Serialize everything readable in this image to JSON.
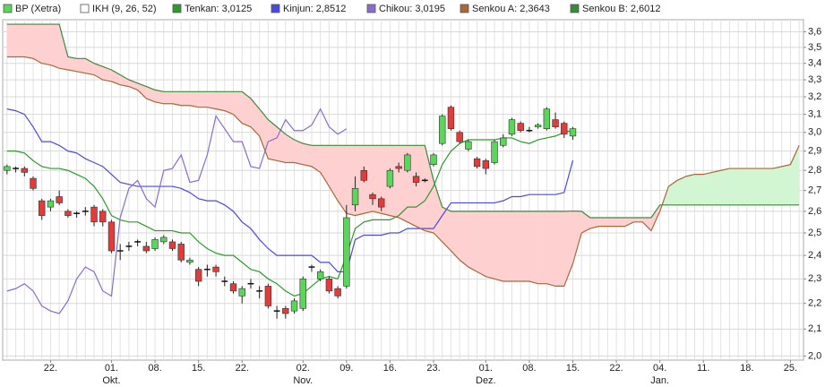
{
  "chart_data": {
    "type": "candlestick",
    "name": "BP (Xetra)",
    "indicator": "IKH (9, 26, 52)",
    "up_color": "#5ad65a",
    "down_color": "#e03c3c",
    "cloud_colors": [
      "#ffd0d0",
      "#d2f5d2"
    ],
    "log_scale": true,
    "grid": true,
    "categories": [
      null,
      null,
      null,
      null,
      null,
      "22.",
      null,
      null,
      null,
      null,
      null,
      null,
      "01.",
      null,
      null,
      null,
      null,
      "08.",
      null,
      null,
      null,
      null,
      "15.",
      null,
      null,
      null,
      null,
      "22.",
      null,
      null,
      null,
      null,
      null,
      null,
      "02.",
      null,
      null,
      null,
      null,
      "09.",
      null,
      null,
      null,
      null,
      "16.",
      null,
      null,
      null,
      null,
      "23.",
      null,
      null,
      null,
      null,
      null,
      "01.",
      null,
      null,
      null,
      null,
      "08.",
      null,
      null,
      null,
      null,
      "15.",
      null,
      null,
      null,
      null,
      "22.",
      null,
      null,
      null,
      null,
      "04.",
      null,
      null,
      null,
      null,
      "11.",
      null,
      null,
      null,
      null,
      "18.",
      null,
      null,
      null,
      null,
      "25.",
      null
    ],
    "months": [
      null,
      null,
      null,
      null,
      null,
      null,
      null,
      null,
      null,
      null,
      null,
      null,
      "Okt.",
      null,
      null,
      null,
      null,
      null,
      null,
      null,
      null,
      null,
      null,
      null,
      null,
      null,
      null,
      null,
      null,
      null,
      null,
      null,
      null,
      null,
      "Nov.",
      null,
      null,
      null,
      null,
      null,
      null,
      null,
      null,
      null,
      null,
      null,
      null,
      null,
      null,
      null,
      null,
      null,
      null,
      null,
      null,
      "Dez.",
      null,
      null,
      null,
      null,
      null,
      null,
      null,
      null,
      null,
      null,
      null,
      null,
      null,
      null,
      null,
      null,
      null,
      null,
      null,
      "Jan.",
      null,
      null,
      null,
      null,
      null,
      null,
      null,
      null,
      null,
      null,
      null,
      null,
      null,
      null,
      null,
      null
    ],
    "open": [
      2.8,
      2.81,
      2.81,
      2.76,
      2.65,
      2.62,
      2.67,
      2.6,
      2.59,
      2.6,
      2.62,
      2.6,
      2.55,
      2.42,
      2.44,
      2.46,
      2.44,
      2.43,
      2.46,
      2.46,
      2.45,
      2.37,
      2.34,
      2.34,
      2.35,
      2.29,
      2.28,
      2.23,
      2.28,
      2.25,
      2.27,
      2.17,
      2.18,
      2.17,
      2.18,
      2.35,
      2.3,
      2.3,
      2.26,
      2.27,
      2.63,
      2.8,
      2.68,
      2.66,
      2.72,
      2.82,
      2.8,
      2.77,
      2.75,
      2.83,
      2.94,
      3.14,
      3.0,
      2.91,
      2.86,
      2.85,
      2.84,
      2.93,
      2.99,
      3.05,
      3.01,
      3.03,
      3.02,
      3.07,
      3.05,
      2.98,
      null,
      null,
      null,
      null,
      null,
      null,
      null,
      null,
      null,
      null,
      null,
      null,
      null,
      null,
      null,
      null,
      null,
      null,
      null,
      null,
      null,
      null,
      null,
      null,
      null,
      null
    ],
    "high": [
      2.83,
      2.82,
      2.82,
      2.77,
      2.66,
      2.66,
      2.7,
      2.61,
      2.6,
      2.62,
      2.63,
      2.61,
      2.56,
      2.45,
      2.46,
      2.47,
      2.46,
      2.48,
      2.49,
      2.47,
      2.46,
      2.39,
      2.35,
      2.36,
      2.36,
      2.31,
      2.29,
      2.27,
      2.3,
      2.27,
      2.28,
      2.19,
      2.19,
      2.22,
      2.31,
      2.36,
      2.34,
      2.31,
      2.27,
      2.63,
      2.77,
      2.82,
      2.69,
      2.67,
      2.81,
      2.84,
      2.89,
      2.79,
      2.76,
      2.89,
      3.1,
      3.15,
      3.01,
      2.96,
      2.87,
      2.86,
      2.96,
      2.99,
      3.08,
      3.06,
      3.03,
      3.05,
      3.14,
      3.11,
      3.06,
      3.03,
      null,
      null,
      null,
      null,
      null,
      null,
      null,
      null,
      null,
      null,
      null,
      null,
      null,
      null,
      null,
      null,
      null,
      null,
      null,
      null,
      null,
      null,
      null,
      null,
      null,
      null
    ],
    "low": [
      2.78,
      2.79,
      2.77,
      2.7,
      2.56,
      2.6,
      2.63,
      2.57,
      2.57,
      2.58,
      2.53,
      2.53,
      2.41,
      2.38,
      2.42,
      2.44,
      2.41,
      2.42,
      2.45,
      2.42,
      2.37,
      2.36,
      2.27,
      2.31,
      2.31,
      2.27,
      2.24,
      2.2,
      2.26,
      2.22,
      2.18,
      2.14,
      2.14,
      2.16,
      2.17,
      2.33,
      2.29,
      2.24,
      2.22,
      2.26,
      2.6,
      2.74,
      2.63,
      2.6,
      2.71,
      2.79,
      2.79,
      2.72,
      2.74,
      2.82,
      2.93,
      3.01,
      2.94,
      2.9,
      2.81,
      2.78,
      2.83,
      2.92,
      2.98,
      3.0,
      3.0,
      3.02,
      3.01,
      3.02,
      2.97,
      2.96,
      null,
      null,
      null,
      null,
      null,
      null,
      null,
      null,
      null,
      null,
      null,
      null,
      null,
      null,
      null,
      null,
      null,
      null,
      null,
      null,
      null,
      null,
      null,
      null,
      null,
      null
    ],
    "close": [
      2.82,
      2.81,
      2.79,
      2.71,
      2.58,
      2.65,
      2.64,
      2.58,
      2.59,
      2.6,
      2.55,
      2.55,
      2.42,
      2.42,
      2.44,
      2.46,
      2.42,
      2.47,
      2.48,
      2.43,
      2.38,
      2.38,
      2.29,
      2.34,
      2.33,
      2.29,
      2.25,
      2.26,
      2.28,
      2.25,
      2.19,
      2.17,
      2.16,
      2.21,
      2.3,
      2.35,
      2.33,
      2.25,
      2.23,
      2.57,
      2.71,
      2.75,
      2.66,
      2.62,
      2.8,
      2.81,
      2.88,
      2.74,
      2.75,
      2.88,
      3.09,
      3.02,
      2.95,
      2.95,
      2.82,
      2.81,
      2.95,
      2.97,
      3.07,
      3.01,
      3.01,
      3.04,
      3.13,
      3.03,
      2.99,
      3.02,
      null,
      null,
      null,
      null,
      null,
      null,
      null,
      null,
      null,
      null,
      null,
      null,
      null,
      null,
      null,
      null,
      null,
      null,
      null,
      null,
      null,
      null,
      null,
      null,
      null,
      null
    ],
    "series": [
      {
        "name": "Tenkan: 3,0125",
        "color": "#2c9a2c",
        "values": [
          2.9,
          2.9,
          2.89,
          2.85,
          2.82,
          2.81,
          2.81,
          2.8,
          2.78,
          2.76,
          2.72,
          2.66,
          2.58,
          2.56,
          2.55,
          2.55,
          2.53,
          2.51,
          2.51,
          2.51,
          2.5,
          2.5,
          2.46,
          2.43,
          2.41,
          2.4,
          2.4,
          2.37,
          2.34,
          2.33,
          2.3,
          2.28,
          2.25,
          2.23,
          2.24,
          2.27,
          2.3,
          2.31,
          2.3,
          2.4,
          2.52,
          2.55,
          2.56,
          2.56,
          2.56,
          2.58,
          2.62,
          2.62,
          2.65,
          2.72,
          2.83,
          2.9,
          2.94,
          2.96,
          2.96,
          2.96,
          2.96,
          2.97,
          2.97,
          2.95,
          2.94,
          2.96,
          2.97,
          2.98,
          3.0,
          3.0125,
          null,
          null,
          null,
          null,
          null,
          null,
          null,
          null,
          null,
          null,
          null,
          null,
          null,
          null,
          null,
          null,
          null,
          null,
          null,
          null,
          null,
          null,
          null,
          null,
          null,
          null
        ]
      },
      {
        "name": "Kinjun: 2,8512",
        "color": "#4a4ae0",
        "values": [
          3.13,
          3.12,
          3.1,
          3.03,
          2.95,
          2.95,
          2.93,
          2.9,
          2.89,
          2.86,
          2.84,
          2.82,
          2.78,
          2.74,
          2.73,
          2.72,
          2.72,
          2.72,
          2.72,
          2.72,
          2.71,
          2.69,
          2.66,
          2.65,
          2.65,
          2.63,
          2.6,
          2.55,
          2.52,
          2.47,
          2.43,
          2.4,
          2.4,
          2.4,
          2.4,
          2.4,
          2.37,
          2.37,
          2.33,
          2.33,
          2.47,
          2.49,
          2.49,
          2.49,
          2.5,
          2.5,
          2.52,
          2.52,
          2.52,
          2.52,
          2.58,
          2.64,
          2.64,
          2.64,
          2.64,
          2.64,
          2.64,
          2.65,
          2.67,
          2.67,
          2.68,
          2.68,
          2.68,
          2.68,
          2.69,
          2.8512,
          null,
          null,
          null,
          null,
          null,
          null,
          null,
          null,
          null,
          null,
          null,
          null,
          null,
          null,
          null,
          null,
          null,
          null,
          null,
          null,
          null,
          null,
          null,
          null,
          null,
          null
        ]
      },
      {
        "name": "Chikou: 3,0195",
        "color": "#8a6ccc",
        "values": [
          2.25,
          2.26,
          2.28,
          2.25,
          2.19,
          2.17,
          2.16,
          2.21,
          2.3,
          2.35,
          2.33,
          2.25,
          2.23,
          2.57,
          2.71,
          2.75,
          2.66,
          2.62,
          2.8,
          2.81,
          2.88,
          2.74,
          2.75,
          2.88,
          3.09,
          3.02,
          2.95,
          2.95,
          2.82,
          2.81,
          2.95,
          2.97,
          3.07,
          3.01,
          3.01,
          3.04,
          3.13,
          3.03,
          2.99,
          3.0195,
          null,
          null,
          null,
          null,
          null,
          null,
          null,
          null,
          null,
          null,
          null,
          null,
          null,
          null,
          null,
          null,
          null,
          null,
          null,
          null,
          null,
          null,
          null,
          null,
          null,
          null,
          null,
          null,
          null,
          null,
          null,
          null,
          null,
          null,
          null,
          null,
          null,
          null,
          null,
          null,
          null,
          null,
          null,
          null,
          null,
          null,
          null,
          null,
          null,
          null,
          null,
          null
        ]
      },
      {
        "name": "Senkou A: 2,3643",
        "color": "#a8683a",
        "values": [
          3.44,
          3.44,
          3.44,
          3.43,
          3.4,
          3.39,
          3.37,
          3.36,
          3.35,
          3.34,
          3.33,
          3.3,
          3.29,
          3.27,
          3.26,
          3.24,
          3.19,
          3.17,
          3.16,
          3.16,
          3.15,
          3.15,
          3.14,
          3.14,
          3.13,
          3.12,
          3.1,
          3.05,
          3.03,
          2.98,
          2.86,
          2.85,
          2.84,
          2.84,
          2.83,
          2.82,
          2.79,
          2.72,
          2.65,
          2.59,
          2.58,
          2.59,
          2.6,
          2.59,
          2.58,
          2.57,
          2.55,
          2.53,
          2.51,
          2.5,
          2.46,
          2.42,
          2.38,
          2.35,
          2.33,
          2.31,
          2.3,
          2.29,
          2.29,
          2.29,
          2.29,
          2.28,
          2.28,
          2.27,
          2.27,
          2.3643,
          2.5,
          2.52,
          2.53,
          2.53,
          2.53,
          2.53,
          2.55,
          2.55,
          2.51,
          2.6,
          2.72,
          2.75,
          2.77,
          2.78,
          2.78,
          2.79,
          2.8,
          2.81,
          2.81,
          2.81,
          2.81,
          2.81,
          2.81,
          2.82,
          2.83,
          2.93
        ]
      },
      {
        "name": "Senkou B: 2,6012",
        "color": "#3a8a3a",
        "values": [
          3.65,
          3.65,
          3.65,
          3.65,
          3.65,
          3.65,
          3.65,
          3.44,
          3.43,
          3.43,
          3.4,
          3.38,
          3.36,
          3.33,
          3.3,
          3.28,
          3.26,
          3.24,
          3.23,
          3.23,
          3.23,
          3.23,
          3.23,
          3.23,
          3.23,
          3.23,
          3.23,
          3.23,
          3.19,
          3.13,
          3.07,
          3.03,
          2.99,
          2.96,
          2.94,
          2.93,
          2.93,
          2.93,
          2.93,
          2.93,
          2.93,
          2.93,
          2.93,
          2.93,
          2.93,
          2.93,
          2.93,
          2.93,
          2.93,
          2.75,
          2.62,
          2.6,
          2.6,
          2.6,
          2.6,
          2.6,
          2.6,
          2.6,
          2.6,
          2.6,
          2.6,
          2.6,
          2.6,
          2.6,
          2.6,
          2.6012,
          2.6,
          2.57,
          2.57,
          2.57,
          2.57,
          2.57,
          2.57,
          2.57,
          2.57,
          2.63,
          2.63,
          2.63,
          2.63,
          2.63,
          2.63,
          2.63,
          2.63,
          2.63,
          2.63,
          2.63,
          2.63,
          2.63,
          2.63,
          2.63,
          2.63,
          2.63
        ]
      }
    ],
    "ylim": [
      1.985,
      3.68
    ],
    "yticks": [
      {
        "value": 2.0,
        "label": "2,0"
      },
      {
        "value": 2.1,
        "label": "2,1"
      },
      {
        "value": 2.2,
        "label": "2,2"
      },
      {
        "value": 2.3,
        "label": "2,3"
      },
      {
        "value": 2.4,
        "label": "2,4"
      },
      {
        "value": 2.5,
        "label": "2,5"
      },
      {
        "value": 2.6,
        "label": "2,6"
      },
      {
        "value": 2.7,
        "label": "2,7"
      },
      {
        "value": 2.8,
        "label": "2,8"
      },
      {
        "value": 2.9,
        "label": "2,9"
      },
      {
        "value": 3.0,
        "label": "3,0"
      },
      {
        "value": 3.1,
        "label": "3,1"
      },
      {
        "value": 3.2,
        "label": "3,2"
      },
      {
        "value": 3.3,
        "label": "3,3"
      },
      {
        "value": 3.4,
        "label": "3,4"
      },
      {
        "value": 3.5,
        "label": "3,5"
      },
      {
        "value": 3.6,
        "label": "3,6"
      }
    ]
  }
}
